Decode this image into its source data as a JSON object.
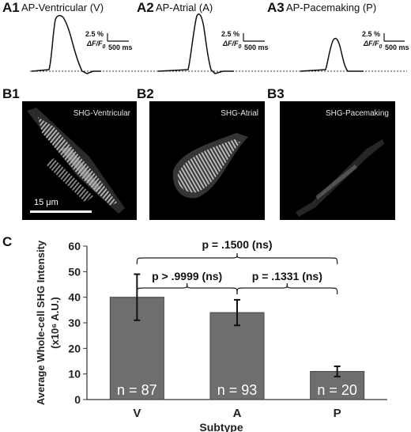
{
  "panels_a": [
    {
      "letter": "A1",
      "title": "AP-Ventricular (V)",
      "scale_pct": "2.5 %",
      "scale_df": "ΔF/F",
      "scale_df_sub": "0",
      "scale_ms": "500 ms"
    },
    {
      "letter": "A2",
      "title": "AP-Atrial (A)",
      "scale_pct": "2.5 %",
      "scale_df": "ΔF/F",
      "scale_df_sub": "0",
      "scale_ms": "500 ms"
    },
    {
      "letter": "A3",
      "title": "AP-Pacemaking (P)",
      "scale_pct": "2.5 %",
      "scale_df": "ΔF/F",
      "scale_df_sub": "0",
      "scale_ms": "500 ms"
    }
  ],
  "panels_b": [
    {
      "letter": "B1",
      "label": "SHG-Ventricular",
      "scale_bar": "15 μm"
    },
    {
      "letter": "B2",
      "label": "SHG-Atrial"
    },
    {
      "letter": "B3",
      "label": "SHG-Pacemaking"
    }
  ],
  "panel_c_letter": "C",
  "chart_data": {
    "type": "bar",
    "categories": [
      "V",
      "A",
      "P"
    ],
    "values": [
      40,
      34,
      11
    ],
    "errors": [
      9,
      5,
      2
    ],
    "n_labels": [
      "n = 87",
      "n = 93",
      "n = 20"
    ],
    "xlabel": "Subtype",
    "ylabel_line1": "Average Whole-cell SHG Intensity",
    "ylabel_line2": "(x10⁶ A.U.)",
    "ylim": [
      0,
      60
    ],
    "yticks": [
      "0",
      "10",
      "20",
      "30",
      "40",
      "50",
      "60"
    ],
    "bar_color": "#6e6e6e",
    "brackets": [
      {
        "from": 0,
        "to": 2,
        "label": "p = .1500 (ns)"
      },
      {
        "from": 0,
        "to": 1,
        "label": "p > .9999 (ns)"
      },
      {
        "from": 1,
        "to": 2,
        "label": "p = .1331 (ns)"
      }
    ]
  }
}
